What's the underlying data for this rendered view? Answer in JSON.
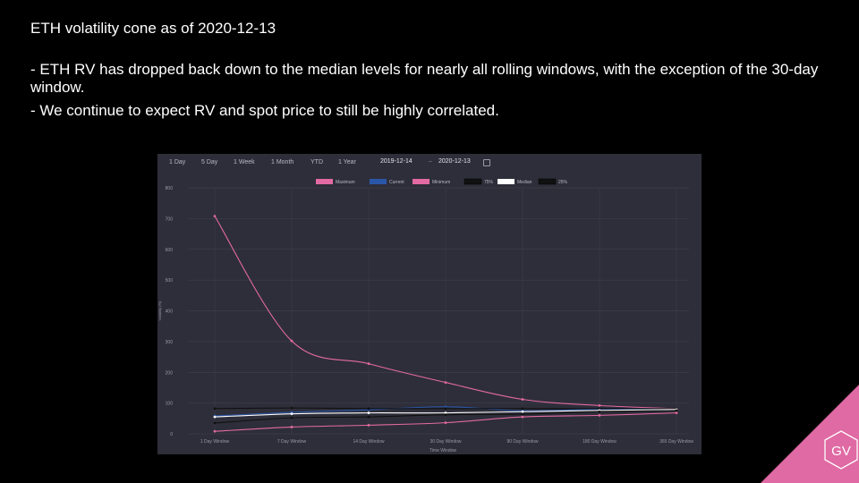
{
  "slide": {
    "title": "ETH volatility cone as of 2020-12-13",
    "bullet1": "- ETH RV has dropped back down to the median levels for nearly all rolling windows, with the exception of the 30-day window.",
    "bullet2": "- We continue to expect RV and spot price to still be highly correlated.",
    "logo_text": "GV"
  },
  "toolbar": {
    "ranges": [
      "1 Day",
      "5 Day",
      "1 Week",
      "1 Month",
      "YTD",
      "1 Year"
    ],
    "start_date": "2019-12-14",
    "end_date": "2020-12-13",
    "calendar_icon": "calendar-icon"
  },
  "chart_data": {
    "type": "line",
    "xlabel": "Time Window",
    "ylabel": "Volatility (%)",
    "ylim": [
      0,
      800
    ],
    "yticks": [
      0,
      100,
      200,
      300,
      400,
      500,
      600,
      700,
      800
    ],
    "grid": true,
    "legend_position": "top-center",
    "categories": [
      "1 Day Window",
      "7 Day Window",
      "14 Day Window",
      "30 Day Window",
      "90 Day Window",
      "180 Day Window",
      "365 Day Window"
    ],
    "series": [
      {
        "name": "Maximum",
        "color": "#e36aa2",
        "values": [
          708,
          302,
          228,
          167,
          112,
          92,
          82
        ]
      },
      {
        "name": "Current",
        "color": "#2a56a8",
        "values": [
          58,
          70,
          78,
          88,
          75,
          80,
          80
        ]
      },
      {
        "name": "Minimum",
        "color": "#e36aa2",
        "values": [
          8,
          22,
          28,
          36,
          55,
          60,
          68
        ]
      },
      {
        "name": "75%",
        "color": "#111111",
        "values": [
          82,
          84,
          82,
          82,
          82,
          82,
          82
        ]
      },
      {
        "name": "Median",
        "color": "#ffffff",
        "values": [
          55,
          65,
          68,
          68,
          72,
          76,
          79
        ]
      },
      {
        "name": "25%",
        "color": "#111111",
        "values": [
          35,
          52,
          55,
          62,
          64,
          72,
          76
        ]
      }
    ]
  }
}
